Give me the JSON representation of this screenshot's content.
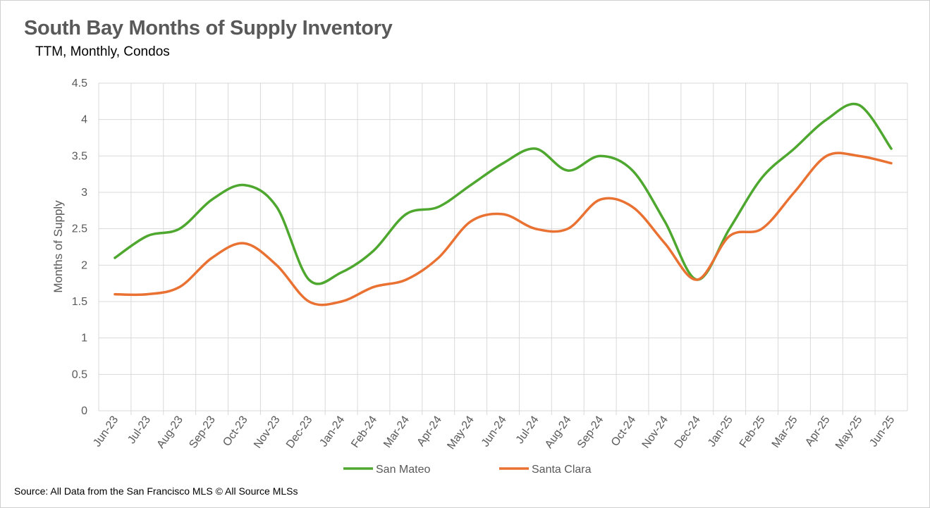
{
  "title": "South Bay Months of Supply Inventory",
  "subtitle": "TTM, Monthly, Condos",
  "source": "Source: All Data from the San Francisco MLS © All Source MLSs",
  "chart_data": {
    "type": "line",
    "title": "South Bay Months of Supply Inventory",
    "subtitle": "TTM, Monthly, Condos",
    "ylabel": "Months of Supply",
    "xlabel": "",
    "ylim": [
      0,
      4.5
    ],
    "ytick_step": 0.5,
    "y_tick_labels": [
      "0",
      "0.5",
      "1",
      "1.5",
      "2",
      "2.5",
      "3",
      "3.5",
      "4",
      "4.5"
    ],
    "grid": true,
    "legend_position": "bottom",
    "smooth": true,
    "categories": [
      "Jun-23",
      "Jul-23",
      "Aug-23",
      "Sep-23",
      "Oct-23",
      "Nov-23",
      "Dec-23",
      "Jan-24",
      "Feb-24",
      "Mar-24",
      "Apr-24",
      "May-24",
      "Jun-24",
      "Jul-24",
      "Aug-24",
      "Sep-24",
      "Oct-24",
      "Nov-24",
      "Dec-24",
      "Jan-25",
      "Feb-25",
      "Mar-25",
      "Apr-25",
      "May-25",
      "Jun-25"
    ],
    "series": [
      {
        "name": "San Mateo",
        "color": "#4ea72e",
        "values": [
          2.1,
          2.4,
          2.5,
          2.9,
          3.1,
          2.8,
          1.8,
          1.9,
          2.2,
          2.7,
          2.8,
          3.1,
          3.4,
          3.6,
          3.3,
          3.5,
          3.3,
          2.6,
          1.8,
          2.5,
          3.2,
          3.6,
          4.0,
          4.2,
          3.6
        ]
      },
      {
        "name": "Santa Clara",
        "color": "#e97132",
        "values": [
          1.6,
          1.6,
          1.7,
          2.1,
          2.3,
          2.0,
          1.5,
          1.5,
          1.7,
          1.8,
          2.1,
          2.6,
          2.7,
          2.5,
          2.5,
          2.9,
          2.8,
          2.3,
          1.8,
          2.4,
          2.5,
          3.0,
          3.5,
          3.5,
          3.4
        ]
      }
    ]
  }
}
